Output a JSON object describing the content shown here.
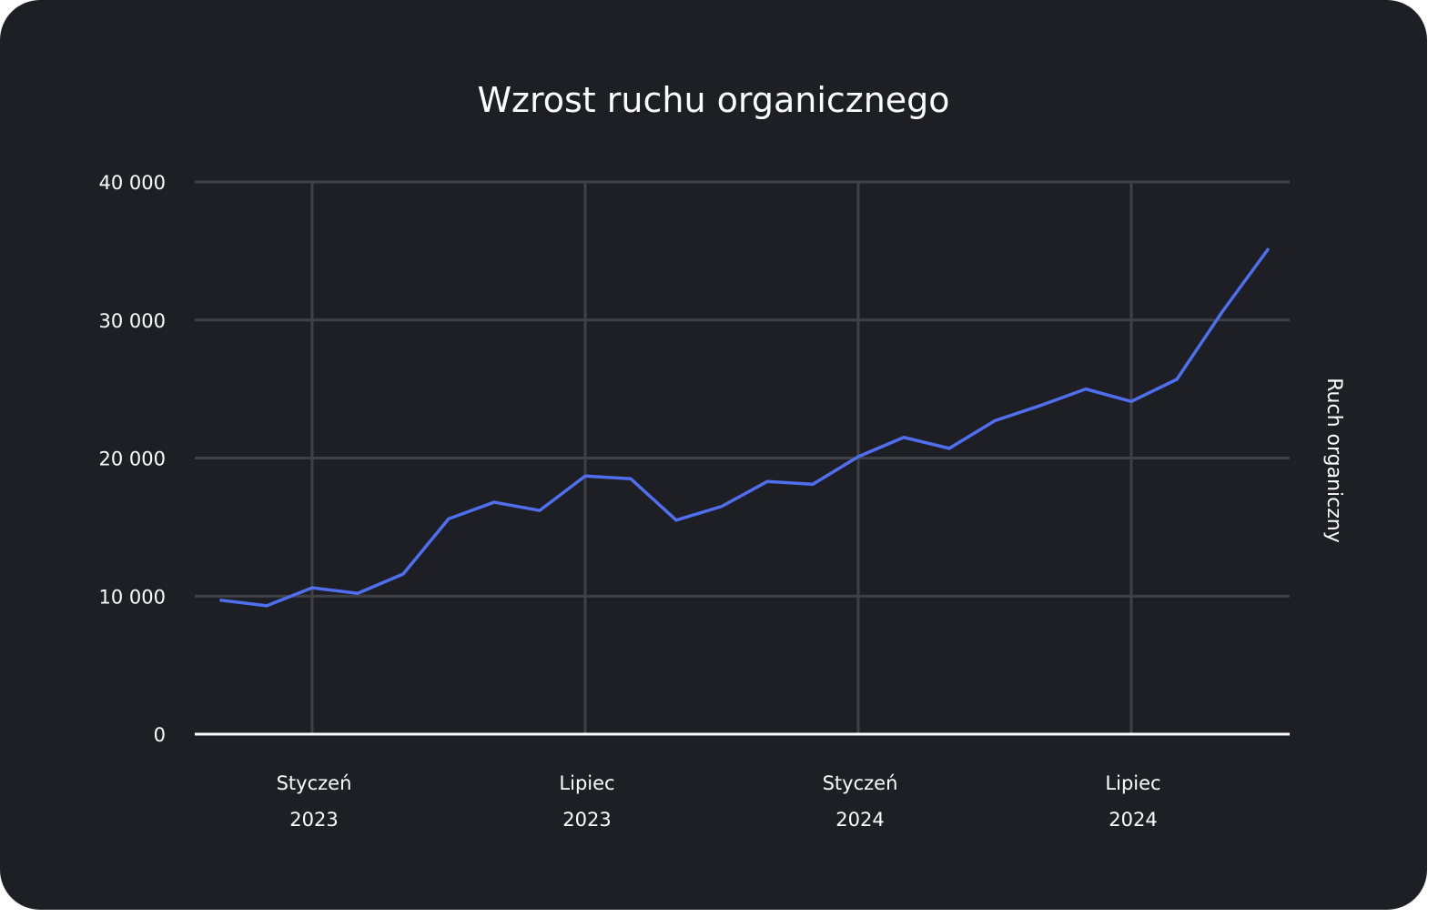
{
  "chart_data": {
    "type": "line",
    "title": "Wzrost ruchu organicznego",
    "ylabel": "Ruch organiczny",
    "xlabel": "",
    "ylim": [
      0,
      40000
    ],
    "y_ticks": [
      0,
      10000,
      20000,
      30000,
      40000
    ],
    "y_tick_labels": [
      "0",
      "10 000",
      "20 000",
      "30 000",
      "40 000"
    ],
    "x_ticks": [
      {
        "index": 2,
        "month": "Styczeń",
        "year": "2023"
      },
      {
        "index": 8,
        "month": "Lipiec",
        "year": "2023"
      },
      {
        "index": 14,
        "month": "Styczeń",
        "year": "2024"
      },
      {
        "index": 20,
        "month": "Lipiec",
        "year": "2024"
      }
    ],
    "grid": true,
    "series": [
      {
        "color": "#4f6ff0",
        "values": [
          9700,
          9300,
          10600,
          10200,
          11600,
          15600,
          16800,
          16200,
          18700,
          18500,
          15500,
          16500,
          18300,
          18100,
          20100,
          21500,
          20700,
          22700,
          23800,
          25000,
          24100,
          25700,
          30600,
          35100
        ]
      }
    ],
    "colors": {
      "background": "#1e1f24",
      "grid": "#404146",
      "baseline": "#ffffff",
      "line": "#4f6ff0",
      "text": "#ffffff"
    }
  }
}
